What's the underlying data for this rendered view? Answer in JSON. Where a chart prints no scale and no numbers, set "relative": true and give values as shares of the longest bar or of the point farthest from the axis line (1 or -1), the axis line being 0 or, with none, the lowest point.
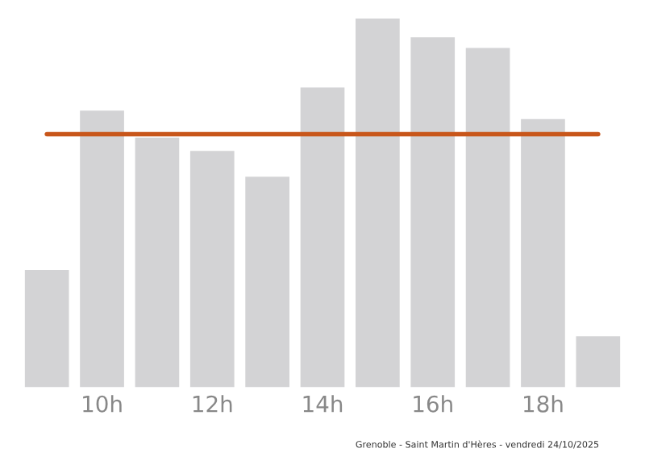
{
  "chart_data": {
    "type": "bar",
    "relative": true,
    "categories": [
      null,
      "10h",
      null,
      "12h",
      null,
      "14h",
      null,
      "16h",
      null,
      "18h",
      null
    ],
    "values": [
      0.318,
      0.75,
      0.677,
      0.641,
      0.571,
      0.813,
      1,
      0.949,
      0.92,
      0.727,
      0.138
    ],
    "color": "#d3d3d5",
    "ref_lines": [
      {
        "axis": "y",
        "value": 0.686,
        "color": "#c8561a",
        "line_style": "solid"
      }
    ],
    "annotations": [
      "Grenoble - Saint Martin d'Hères - vendredi 24/10/2025"
    ],
    "grid": false,
    "legend": false
  }
}
